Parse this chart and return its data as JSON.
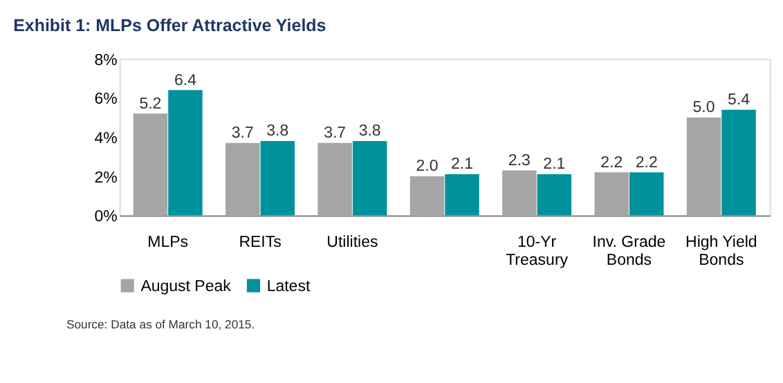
{
  "chart_data": {
    "type": "bar",
    "title": "Exhibit 1: MLPs Offer Attractive Yields",
    "categories": [
      "MLPs",
      "REITs",
      "Utilities",
      null,
      "10-Yr Treasury",
      "Inv. Grade Bonds",
      "High Yield Bonds"
    ],
    "series": [
      {
        "name": "August Peak",
        "color": "#a5a5a5",
        "values": [
          5.2,
          3.7,
          3.7,
          2.0,
          2.3,
          2.2,
          5.0
        ],
        "value_labels": [
          "5.2",
          "3.7",
          "3.7",
          "2.0",
          "2.3",
          "2.2",
          "5.0"
        ]
      },
      {
        "name": "Latest",
        "color": "#00929c",
        "values": [
          6.4,
          3.8,
          3.8,
          2.1,
          2.1,
          2.2,
          5.4
        ],
        "value_labels": [
          "6.4",
          "3.8",
          "3.8",
          "2.1",
          "2.1",
          "2.2",
          "5.4"
        ]
      }
    ],
    "ylim": [
      0,
      8
    ],
    "yticks": [
      {
        "value": 0,
        "label": "0%"
      },
      {
        "value": 2,
        "label": "2%"
      },
      {
        "value": 4,
        "label": "4%"
      },
      {
        "value": 6,
        "label": "6%"
      },
      {
        "value": 8,
        "label": "8%"
      }
    ],
    "grid": false,
    "legend": "bottom",
    "annotations": [
      "Source: Data as of March 10, 2015."
    ]
  }
}
